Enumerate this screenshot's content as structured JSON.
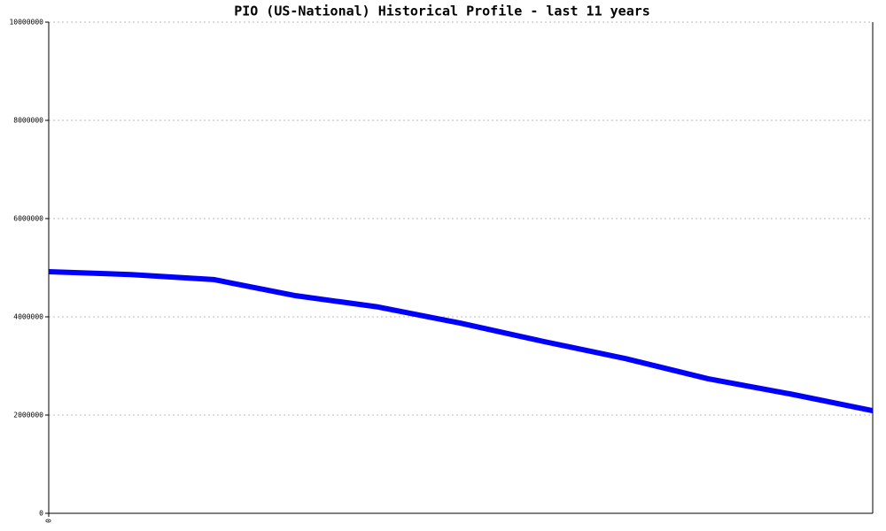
{
  "chart_data": {
    "type": "line",
    "title": "PIO (US-National) Historical Profile - last 11 years",
    "categories": [
      "0",
      null,
      null,
      null,
      null,
      null,
      null,
      null,
      null,
      null,
      null
    ],
    "series": [
      {
        "color": "#0000ff",
        "values": [
          4920000,
          4860000,
          4760000,
          4430000,
          4200000,
          3870000,
          3500000,
          3150000,
          2740000,
          2430000,
          2090000
        ]
      }
    ],
    "ylim": [
      0,
      10000000
    ],
    "yticks": [
      0,
      2000000,
      4000000,
      6000000,
      8000000,
      10000000
    ],
    "grid": true
  }
}
